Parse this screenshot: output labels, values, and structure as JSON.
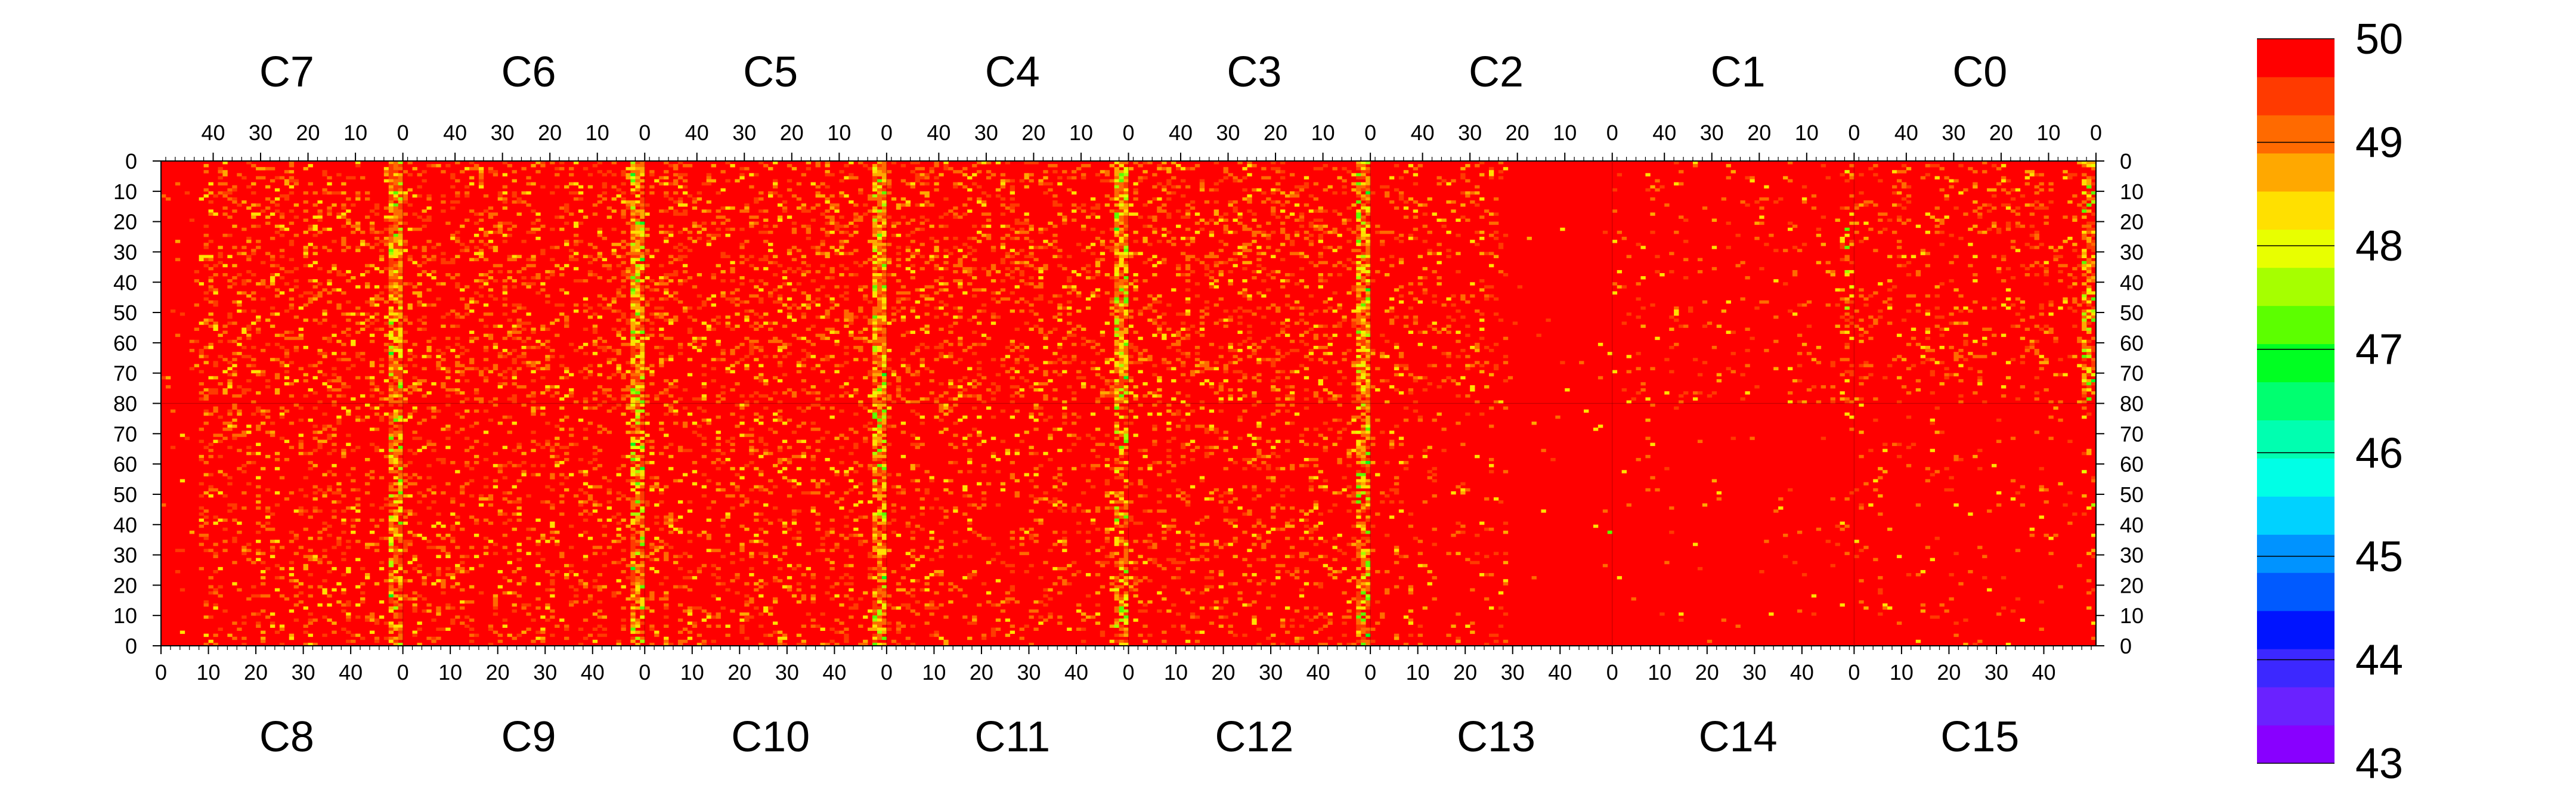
{
  "chart_data": {
    "type": "heatmap",
    "title": "",
    "zlim": [
      43,
      50
    ],
    "colorbar": {
      "ticks": [
        "43",
        "44",
        "45",
        "46",
        "47",
        "48",
        "49",
        "50"
      ],
      "colors": [
        "#8800ff",
        "#6a22ff",
        "#3c28ff",
        "#0014ff",
        "#005aff",
        "#0093ff",
        "#00d2ff",
        "#00ffe6",
        "#00ffb0",
        "#00ff70",
        "#00ff22",
        "#5cff00",
        "#a6ff00",
        "#e8ff00",
        "#ffe000",
        "#ffa800",
        "#ff6a00",
        "#ff3a00",
        "#ff0000"
      ]
    },
    "top_row": {
      "chips": [
        "C7",
        "C6",
        "C5",
        "C4",
        "C3",
        "C2",
        "C1",
        "C0"
      ],
      "x_ticks": [
        "40",
        "30",
        "20",
        "10",
        "0"
      ]
    },
    "bottom_row": {
      "chips": [
        "C8",
        "C9",
        "C10",
        "C11",
        "C12",
        "C13",
        "C14",
        "C15"
      ],
      "x_ticks": [
        "0",
        "10",
        "20",
        "30",
        "40"
      ]
    },
    "y_ticks": [
      "0",
      "10",
      "20",
      "30",
      "40",
      "50",
      "60",
      "70",
      "80",
      "70",
      "60",
      "50",
      "40",
      "30",
      "20",
      "10",
      "0"
    ],
    "x_range_per_chip": [
      0,
      51
    ],
    "y_range_per_half": [
      0,
      80
    ],
    "dominant_value": 50,
    "noisy_chip_edges": [
      "C7/C8 right edge",
      "C6/C9 right edge",
      "C5/C10 right edge",
      "C4/C11 right edge",
      "C3/C12 right edge",
      "C0 right edge"
    ],
    "quiet_regions": [
      "C1",
      "C2 right part",
      "C13 right part",
      "C14",
      "C15"
    ]
  }
}
